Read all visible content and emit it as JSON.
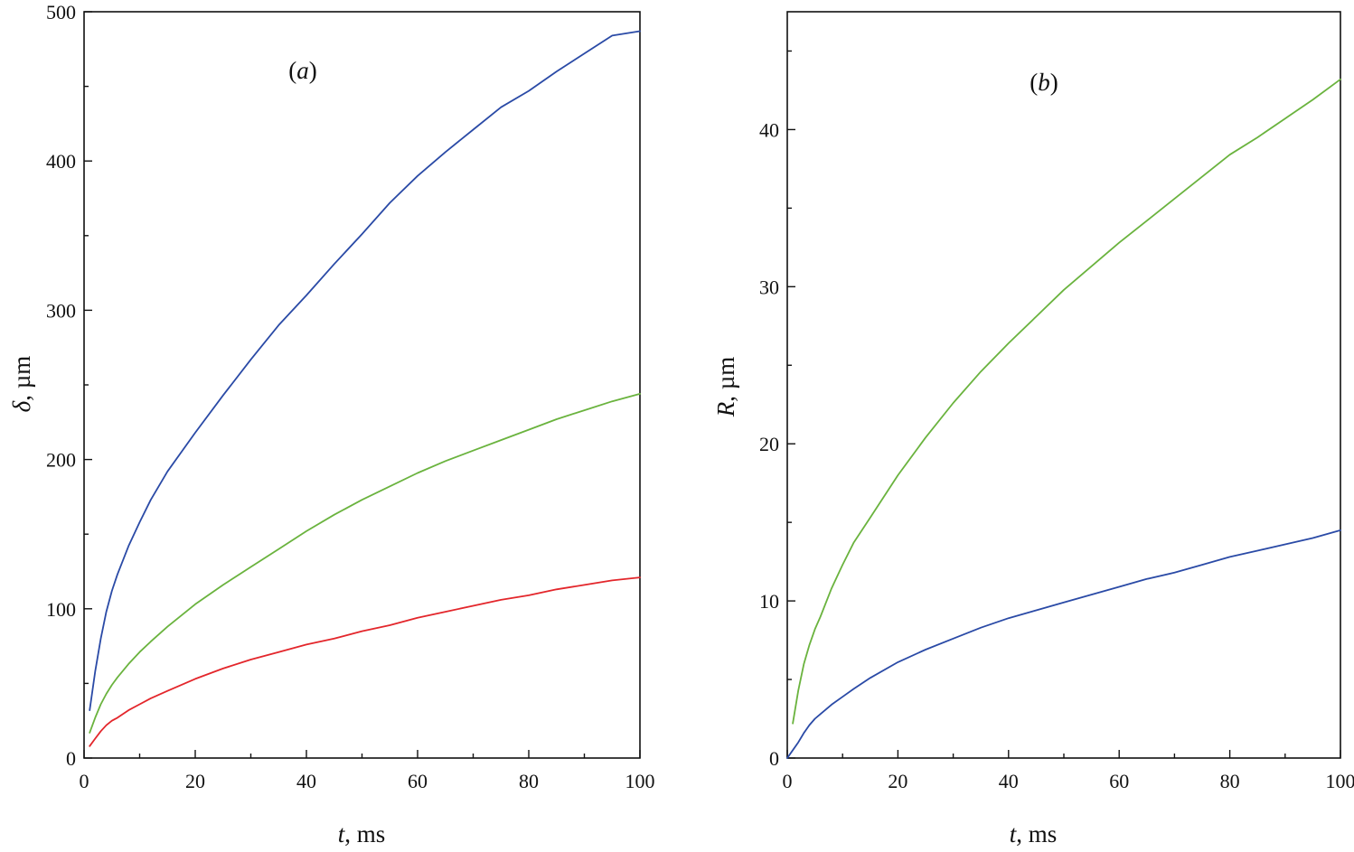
{
  "chart_data": [
    {
      "type": "line",
      "panel_label": "(a)",
      "panel_letter": "a",
      "xlabel": "t, ms",
      "xlabel_var": "t",
      "xlabel_unit": ", ms",
      "ylabel": "δ, µm",
      "ylabel_var": "δ",
      "ylabel_unit": ", µm",
      "xlim": [
        0,
        100
      ],
      "ylim": [
        0,
        500
      ],
      "xticks": [
        0,
        20,
        40,
        60,
        80,
        100
      ],
      "xtick_labels": [
        "0",
        "20",
        "40",
        "60",
        "80",
        "100"
      ],
      "yticks": [
        0,
        100,
        200,
        300,
        400,
        500
      ],
      "ytick_labels": [
        "0",
        "100",
        "200",
        "300",
        "400",
        "500"
      ],
      "grid": false,
      "series": [
        {
          "name": "blue",
          "color": "#2a4aa6",
          "x": [
            1,
            2,
            3,
            4,
            5,
            6,
            8,
            10,
            12,
            15,
            20,
            25,
            30,
            35,
            40,
            45,
            50,
            55,
            60,
            65,
            70,
            75,
            80,
            85,
            90,
            95,
            100
          ],
          "y": [
            32,
            58,
            80,
            98,
            112,
            123,
            142,
            158,
            173,
            192,
            218,
            243,
            267,
            290,
            310,
            331,
            351,
            372,
            390,
            406,
            421,
            436,
            447,
            460,
            472,
            484,
            487
          ]
        },
        {
          "name": "green",
          "color": "#6ab33e",
          "x": [
            1,
            2,
            3,
            4,
            5,
            6,
            8,
            10,
            12,
            15,
            20,
            25,
            30,
            35,
            40,
            45,
            50,
            55,
            60,
            65,
            70,
            75,
            80,
            85,
            90,
            95,
            100
          ],
          "y": [
            17,
            27,
            36,
            43,
            49,
            54,
            63,
            71,
            78,
            88,
            103,
            116,
            128,
            140,
            152,
            163,
            173,
            182,
            191,
            199,
            206,
            213,
            220,
            227,
            233,
            239,
            244
          ]
        },
        {
          "name": "red",
          "color": "#e3262b",
          "x": [
            1,
            2,
            3,
            4,
            5,
            6,
            8,
            10,
            12,
            15,
            20,
            25,
            30,
            35,
            40,
            45,
            50,
            55,
            60,
            65,
            70,
            75,
            80,
            85,
            90,
            95,
            100
          ],
          "y": [
            8,
            13,
            18,
            22,
            25,
            27,
            32,
            36,
            40,
            45,
            53,
            60,
            66,
            71,
            76,
            80,
            85,
            89,
            94,
            98,
            102,
            106,
            109,
            113,
            116,
            119,
            121
          ]
        }
      ]
    },
    {
      "type": "line",
      "panel_label": "(b)",
      "panel_letter": "b",
      "xlabel": "t, ms",
      "xlabel_var": "t",
      "xlabel_unit": ", ms",
      "ylabel": "R, µm",
      "ylabel_var": "R",
      "ylabel_unit": ", µm",
      "xlim": [
        0,
        100
      ],
      "ylim": [
        0,
        47.5
      ],
      "xticks": [
        0,
        20,
        40,
        60,
        80,
        100
      ],
      "xtick_labels": [
        "0",
        "20",
        "40",
        "60",
        "80",
        "100"
      ],
      "yticks": [
        0,
        10,
        20,
        30,
        40
      ],
      "ytick_labels": [
        "0",
        "10",
        "20",
        "30",
        "40"
      ],
      "grid": false,
      "series": [
        {
          "name": "green",
          "color": "#6ab33e",
          "x": [
            1,
            2,
            3,
            4,
            5,
            6,
            8,
            10,
            12,
            15,
            20,
            25,
            30,
            35,
            40,
            45,
            50,
            55,
            60,
            65,
            70,
            75,
            80,
            85,
            90,
            95,
            100
          ],
          "y": [
            2.2,
            4.3,
            6.0,
            7.2,
            8.2,
            9.0,
            10.8,
            12.3,
            13.7,
            15.3,
            18.0,
            20.4,
            22.6,
            24.6,
            26.4,
            28.1,
            29.8,
            31.3,
            32.8,
            34.2,
            35.6,
            37.0,
            38.4,
            39.5,
            40.7,
            41.9,
            43.2
          ]
        },
        {
          "name": "blue",
          "color": "#2a4aa6",
          "x": [
            0,
            1,
            2,
            3,
            4,
            5,
            6,
            8,
            10,
            12,
            15,
            20,
            25,
            30,
            35,
            40,
            45,
            50,
            55,
            60,
            65,
            70,
            75,
            80,
            85,
            90,
            95,
            100
          ],
          "y": [
            0,
            0.5,
            1.0,
            1.6,
            2.1,
            2.5,
            2.8,
            3.4,
            3.9,
            4.4,
            5.1,
            6.1,
            6.9,
            7.6,
            8.3,
            8.9,
            9.4,
            9.9,
            10.4,
            10.9,
            11.4,
            11.8,
            12.3,
            12.8,
            13.2,
            13.6,
            14.0,
            14.5
          ]
        }
      ]
    }
  ]
}
